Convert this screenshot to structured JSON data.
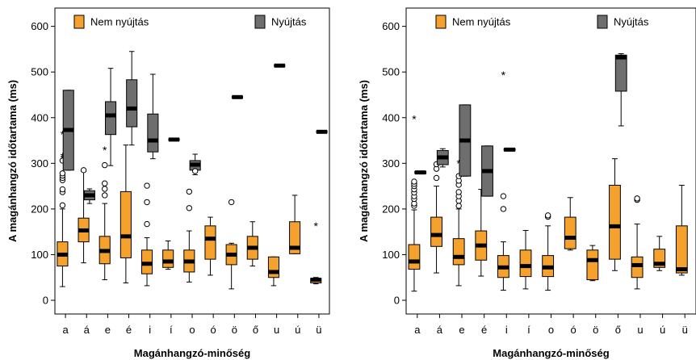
{
  "colors": {
    "nem_nyujtas": "#F4A12D",
    "nyujtas": "#6E6E6E",
    "axis": "#000000",
    "median": "#000000"
  },
  "chart_data": [
    {
      "type": "boxplot",
      "xlabel": "Magánhangzó-minőség",
      "ylabel": "A magánhangzó időtartama (ms)",
      "ylim": [
        -30,
        640
      ],
      "yticks": [
        0,
        100,
        200,
        300,
        400,
        500,
        600
      ],
      "categories": [
        "a",
        "á",
        "e",
        "é",
        "i",
        "í",
        "o",
        "ó",
        "ö",
        "ő",
        "u",
        "ú",
        "ü"
      ],
      "grid": false,
      "legend": "top",
      "series": [
        {
          "name": "Nem nyújtás",
          "color_key": "nem_nyujtas",
          "boxes": [
            {
              "cat": "a",
              "whisker_low": 30,
              "q1": 75,
              "median": 100,
              "q3": 128,
              "whisker_high": 200,
              "outliers_circle": [
                208,
                237,
                243,
                263,
                268,
                273,
                278,
                306
              ],
              "outliers_star": [
                310,
                315,
                363
              ]
            },
            {
              "cat": "á",
              "whisker_low": 82,
              "q1": 128,
              "median": 153,
              "q3": 180,
              "whisker_high": 282,
              "outliers_circle": [
                285
              ],
              "outliers_star": []
            },
            {
              "cat": "e",
              "whisker_low": 45,
              "q1": 80,
              "median": 108,
              "q3": 140,
              "whisker_high": 212,
              "outliers_circle": [
                230,
                244,
                256,
                296
              ],
              "outliers_star": [
                329
              ]
            },
            {
              "cat": "é",
              "whisker_low": 38,
              "q1": 93,
              "median": 140,
              "q3": 238,
              "whisker_high": 340,
              "outliers_circle": [],
              "outliers_star": []
            },
            {
              "cat": "i",
              "whisker_low": 32,
              "q1": 58,
              "median": 80,
              "q3": 110,
              "whisker_high": 137,
              "outliers_circle": [
                167,
                215,
                251
              ],
              "outliers_star": []
            },
            {
              "cat": "í",
              "whisker_low": 68,
              "q1": 72,
              "median": 85,
              "q3": 110,
              "whisker_high": 130,
              "outliers_circle": [],
              "outliers_star": []
            },
            {
              "cat": "o",
              "whisker_low": 40,
              "q1": 62,
              "median": 85,
              "q3": 110,
              "whisker_high": 152,
              "outliers_circle": [
                202,
                238
              ],
              "outliers_star": []
            },
            {
              "cat": "ó",
              "whisker_low": 55,
              "q1": 90,
              "median": 135,
              "q3": 163,
              "whisker_high": 182,
              "outliers_circle": [],
              "outliers_star": []
            },
            {
              "cat": "ö",
              "whisker_low": 25,
              "q1": 78,
              "median": 100,
              "q3": 122,
              "whisker_high": 125,
              "outliers_circle": [
                215
              ],
              "outliers_star": []
            },
            {
              "cat": "ő",
              "whisker_low": 75,
              "q1": 90,
              "median": 115,
              "q3": 140,
              "whisker_high": 172,
              "outliers_circle": [],
              "outliers_star": []
            },
            {
              "cat": "u",
              "whisker_low": 32,
              "q1": 50,
              "median": 62,
              "q3": 95,
              "whisker_high": 95,
              "outliers_circle": [],
              "outliers_star": []
            },
            {
              "cat": "ú",
              "whisker_low": 102,
              "q1": 102,
              "median": 115,
              "q3": 172,
              "whisker_high": 230,
              "outliers_circle": [],
              "outliers_star": []
            },
            {
              "cat": "ü",
              "whisker_low": 36,
              "q1": 38,
              "median": 45,
              "q3": 48,
              "whisker_high": 50,
              "outliers_circle": [],
              "outliers_star": [
                163
              ]
            }
          ]
        },
        {
          "name": "Nyújtás",
          "color_key": "nyujtas",
          "boxes": [
            {
              "cat": "a",
              "whisker_low": 285,
              "q1": 285,
              "median": 373,
              "q3": 460,
              "whisker_high": 460,
              "outliers_circle": [],
              "outliers_star": []
            },
            {
              "cat": "á",
              "whisker_low": 212,
              "q1": 220,
              "median": 230,
              "q3": 240,
              "whisker_high": 244,
              "outliers_circle": [],
              "outliers_star": []
            },
            {
              "cat": "e",
              "whisker_low": 295,
              "q1": 363,
              "median": 405,
              "q3": 435,
              "whisker_high": 508,
              "outliers_circle": [],
              "outliers_star": []
            },
            {
              "cat": "é",
              "whisker_low": 340,
              "q1": 380,
              "median": 420,
              "q3": 483,
              "whisker_high": 545,
              "outliers_circle": [],
              "outliers_star": []
            },
            {
              "cat": "i",
              "whisker_low": 310,
              "q1": 325,
              "median": 350,
              "q3": 408,
              "whisker_high": 495,
              "outliers_circle": [],
              "outliers_star": []
            },
            {
              "cat": "í",
              "whisker_low": 350,
              "q1": 350,
              "median": 352,
              "q3": 354,
              "whisker_high": 354,
              "outliers_circle": [],
              "outliers_star": []
            },
            {
              "cat": "o",
              "whisker_low": 275,
              "q1": 285,
              "median": 297,
              "q3": 306,
              "whisker_high": 320,
              "outliers_circle": [
                283
              ],
              "outliers_star": []
            },
            {
              "cat": "ö",
              "whisker_low": 443,
              "q1": 443,
              "median": 445,
              "q3": 447,
              "whisker_high": 447,
              "outliers_circle": [],
              "outliers_star": []
            },
            {
              "cat": "u",
              "whisker_low": 512,
              "q1": 512,
              "median": 514,
              "q3": 516,
              "whisker_high": 516,
              "outliers_circle": [],
              "outliers_star": []
            },
            {
              "cat": "ü",
              "whisker_low": 367,
              "q1": 367,
              "median": 369,
              "q3": 371,
              "whisker_high": 371,
              "outliers_circle": [],
              "outliers_star": []
            }
          ]
        }
      ]
    },
    {
      "type": "boxplot",
      "xlabel": "Magánhangzó-minőség",
      "ylabel": "A magánhangzó időtartama (ms)",
      "ylim": [
        -30,
        640
      ],
      "yticks": [
        0,
        100,
        200,
        300,
        400,
        500,
        600
      ],
      "categories": [
        "a",
        "á",
        "e",
        "é",
        "i",
        "í",
        "o",
        "ó",
        "ö",
        "ő",
        "u",
        "ú",
        "ü"
      ],
      "grid": false,
      "legend": "top",
      "series": [
        {
          "name": "Nem nyújtás",
          "color_key": "nem_nyujtas",
          "boxes": [
            {
              "cat": "a",
              "whisker_low": 20,
              "q1": 68,
              "median": 85,
              "q3": 122,
              "whisker_high": 198,
              "outliers_circle": [
                207,
                212,
                222,
                228,
                236,
                243,
                250,
                255,
                260
              ],
              "outliers_star": [
                397
              ]
            },
            {
              "cat": "á",
              "whisker_low": 60,
              "q1": 118,
              "median": 143,
              "q3": 182,
              "whisker_high": 250,
              "outliers_circle": [
                268,
                288,
                298
              ],
              "outliers_star": []
            },
            {
              "cat": "e",
              "whisker_low": 32,
              "q1": 78,
              "median": 95,
              "q3": 135,
              "whisker_high": 200,
              "outliers_circle": [
                207,
                218,
                228,
                237,
                253,
                262,
                272
              ],
              "outliers_star": [
                300
              ]
            },
            {
              "cat": "é",
              "whisker_low": 53,
              "q1": 88,
              "median": 120,
              "q3": 152,
              "whisker_high": 243,
              "outliers_circle": [],
              "outliers_star": []
            },
            {
              "cat": "i",
              "whisker_low": 22,
              "q1": 50,
              "median": 72,
              "q3": 98,
              "whisker_high": 128,
              "outliers_circle": [
                200,
                228
              ],
              "outliers_star": [
                493
              ]
            },
            {
              "cat": "í",
              "whisker_low": 25,
              "q1": 52,
              "median": 75,
              "q3": 110,
              "whisker_high": 153,
              "outliers_circle": [],
              "outliers_star": []
            },
            {
              "cat": "o",
              "whisker_low": 22,
              "q1": 52,
              "median": 72,
              "q3": 98,
              "whisker_high": 163,
              "outliers_circle": [
                183,
                186
              ],
              "outliers_star": []
            },
            {
              "cat": "ó",
              "whisker_low": 110,
              "q1": 113,
              "median": 137,
              "q3": 182,
              "whisker_high": 225,
              "outliers_circle": [],
              "outliers_star": []
            },
            {
              "cat": "ö",
              "whisker_low": 43,
              "q1": 45,
              "median": 88,
              "q3": 110,
              "whisker_high": 120,
              "outliers_circle": [],
              "outliers_star": []
            },
            {
              "cat": "ő",
              "whisker_low": 65,
              "q1": 90,
              "median": 162,
              "q3": 252,
              "whisker_high": 310,
              "outliers_circle": [],
              "outliers_star": []
            },
            {
              "cat": "u",
              "whisker_low": 25,
              "q1": 50,
              "median": 77,
              "q3": 95,
              "whisker_high": 167,
              "outliers_circle": [
                220,
                223
              ],
              "outliers_star": []
            },
            {
              "cat": "ú",
              "whisker_low": 65,
              "q1": 72,
              "median": 80,
              "q3": 112,
              "whisker_high": 140,
              "outliers_circle": [],
              "outliers_star": []
            },
            {
              "cat": "ü",
              "whisker_low": 55,
              "q1": 60,
              "median": 68,
              "q3": 163,
              "whisker_high": 252,
              "outliers_circle": [],
              "outliers_star": []
            }
          ]
        },
        {
          "name": "Nyújtás",
          "color_key": "nyujtas",
          "boxes": [
            {
              "cat": "a",
              "whisker_low": 278,
              "q1": 278,
              "median": 280,
              "q3": 282,
              "whisker_high": 282,
              "outliers_circle": [],
              "outliers_star": []
            },
            {
              "cat": "á",
              "whisker_low": 292,
              "q1": 297,
              "median": 313,
              "q3": 328,
              "whisker_high": 332,
              "outliers_circle": [],
              "outliers_star": []
            },
            {
              "cat": "e",
              "whisker_low": 272,
              "q1": 272,
              "median": 350,
              "q3": 428,
              "whisker_high": 428,
              "outliers_circle": [],
              "outliers_star": []
            },
            {
              "cat": "é",
              "whisker_low": 228,
              "q1": 228,
              "median": 283,
              "q3": 338,
              "whisker_high": 338,
              "outliers_circle": [],
              "outliers_star": []
            },
            {
              "cat": "i",
              "whisker_low": 328,
              "q1": 328,
              "median": 330,
              "q3": 332,
              "whisker_high": 332,
              "outliers_circle": [],
              "outliers_star": []
            },
            {
              "cat": "ő",
              "whisker_low": 382,
              "q1": 458,
              "median": 532,
              "q3": 537,
              "whisker_high": 540,
              "outliers_circle": [],
              "outliers_star": []
            }
          ]
        }
      ]
    }
  ]
}
